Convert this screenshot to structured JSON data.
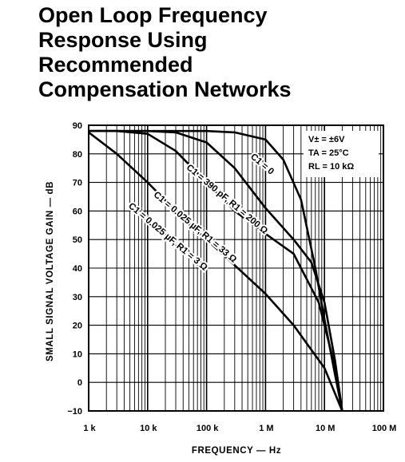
{
  "title_lines": [
    "Open Loop Frequency",
    "Response Using",
    "Recommended",
    "Compensation Networks"
  ],
  "chart_data": {
    "type": "line",
    "xscale": "log",
    "xlabel": "FREQUENCY — Hz",
    "ylabel": "SMALL SIGNAL VOLTAGE GAIN — dB",
    "xlim": [
      1000,
      100000000
    ],
    "ylim": [
      -10,
      90
    ],
    "grid": true,
    "xticks": [
      {
        "value": 1000,
        "label": "1 k"
      },
      {
        "value": 10000,
        "label": "10 k"
      },
      {
        "value": 100000,
        "label": "100 k"
      },
      {
        "value": 1000000,
        "label": "1 M"
      },
      {
        "value": 10000000,
        "label": "10 M"
      },
      {
        "value": 100000000,
        "label": "100 M"
      }
    ],
    "yticks": [
      {
        "value": 90,
        "label": "90"
      },
      {
        "value": 80,
        "label": "80"
      },
      {
        "value": 70,
        "label": "70"
      },
      {
        "value": 60,
        "label": "60"
      },
      {
        "value": 50,
        "label": "50"
      },
      {
        "value": 40,
        "label": "40"
      },
      {
        "value": 30,
        "label": "30"
      },
      {
        "value": 20,
        "label": "20"
      },
      {
        "value": 10,
        "label": "10"
      },
      {
        "value": 0,
        "label": "0"
      },
      {
        "value": -10,
        "label": "−10"
      }
    ],
    "conditions": [
      "V± = ±6V",
      "TA = 25°C",
      "RL = 10 kΩ"
    ],
    "series": [
      {
        "name": "C1 = 0",
        "label_angle": 40,
        "points": [
          [
            1000,
            88
          ],
          [
            100000,
            88
          ],
          [
            300000,
            87.5
          ],
          [
            1000000,
            85
          ],
          [
            2000000,
            78
          ],
          [
            4000000,
            64
          ],
          [
            7000000,
            40
          ],
          [
            10000000,
            22
          ],
          [
            15000000,
            3
          ],
          [
            20000000,
            -10
          ]
        ]
      },
      {
        "name": "C1 = 390 pF, R1 = 200 Ω",
        "label_angle": 40,
        "points": [
          [
            1000,
            88
          ],
          [
            10000,
            88
          ],
          [
            30000,
            87.5
          ],
          [
            100000,
            84
          ],
          [
            300000,
            75
          ],
          [
            1000000,
            61
          ],
          [
            3000000,
            50
          ],
          [
            6000000,
            42
          ],
          [
            10000000,
            28
          ],
          [
            15000000,
            8
          ],
          [
            20000000,
            -10
          ]
        ]
      },
      {
        "name": "C1 = 0.025 µF, R1 = 33 Ω",
        "label_angle": 40,
        "points": [
          [
            1000,
            88
          ],
          [
            3000,
            88
          ],
          [
            10000,
            87
          ],
          [
            30000,
            81
          ],
          [
            100000,
            70
          ],
          [
            300000,
            60
          ],
          [
            1000000,
            52
          ],
          [
            3000000,
            45
          ],
          [
            8000000,
            28
          ],
          [
            14000000,
            8
          ],
          [
            20000000,
            -10
          ]
        ]
      },
      {
        "name": "C1 = 0.025 µF, R1 = 3 Ω",
        "label_angle": 40,
        "points": [
          [
            1000,
            87.5
          ],
          [
            3000,
            80
          ],
          [
            10000,
            70
          ],
          [
            30000,
            60
          ],
          [
            100000,
            50
          ],
          [
            300000,
            41
          ],
          [
            1000000,
            31
          ],
          [
            3000000,
            20
          ],
          [
            10000000,
            5
          ],
          [
            20000000,
            -10
          ]
        ]
      }
    ],
    "legend": "conditions box top-right"
  }
}
